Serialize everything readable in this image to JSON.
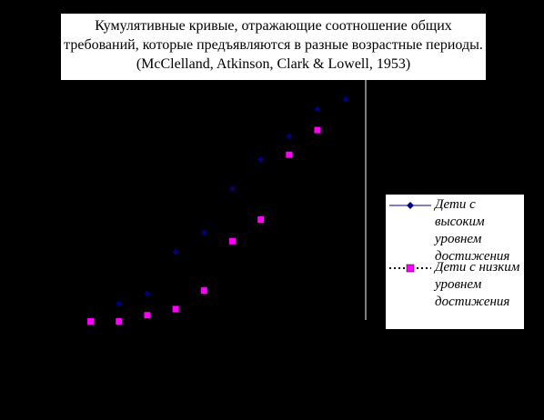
{
  "title": {
    "line1": "Кумулятивные кривые, отражающие соотношение общих",
    "line2": "требований, которые предъявляются в разные возрастные периоды.",
    "line3": "(McClelland, Atkinson, Clark & Lowell, 1953)"
  },
  "colors": {
    "background": "#000000",
    "high_series": "#000080",
    "low_series": "#ff00ff",
    "axis_line": "#ffffff"
  },
  "chart_data": {
    "type": "scatter",
    "title": "Кумулятивные кривые, отражающие соотношение общих требований, которые предъявляются в разные возрастные периоды. (McClelland, Atkinson, Clark & Lowell, 1953)",
    "xlabel": "",
    "ylabel": "",
    "x_ticks_visible": false,
    "y_ticks_visible": false,
    "grid": false,
    "legend_position": "right",
    "series": [
      {
        "name": "Дети с высоким уровнем достижения",
        "marker": "diamond",
        "line_style": "solid",
        "color": "#000080",
        "points": [
          [
            2,
            11.5
          ],
          [
            3,
            18
          ],
          [
            4,
            45
          ],
          [
            5,
            57.5
          ],
          [
            6,
            86
          ],
          [
            7,
            105
          ],
          [
            8,
            120
          ],
          [
            9,
            137.5
          ],
          [
            10,
            144
          ]
        ]
      },
      {
        "name": "Дети с низким уровнем достижения",
        "marker": "square",
        "line_style": "dotted",
        "color": "#ff00ff",
        "points": [
          [
            1,
            0
          ],
          [
            2,
            0
          ],
          [
            3,
            4
          ],
          [
            4,
            8
          ],
          [
            5,
            20
          ],
          [
            6,
            52
          ],
          [
            7,
            66
          ],
          [
            8,
            108
          ],
          [
            9,
            124
          ]
        ]
      }
    ],
    "xlim": [
      0.5,
      10.7
    ],
    "ylim": [
      -5,
      170
    ]
  }
}
